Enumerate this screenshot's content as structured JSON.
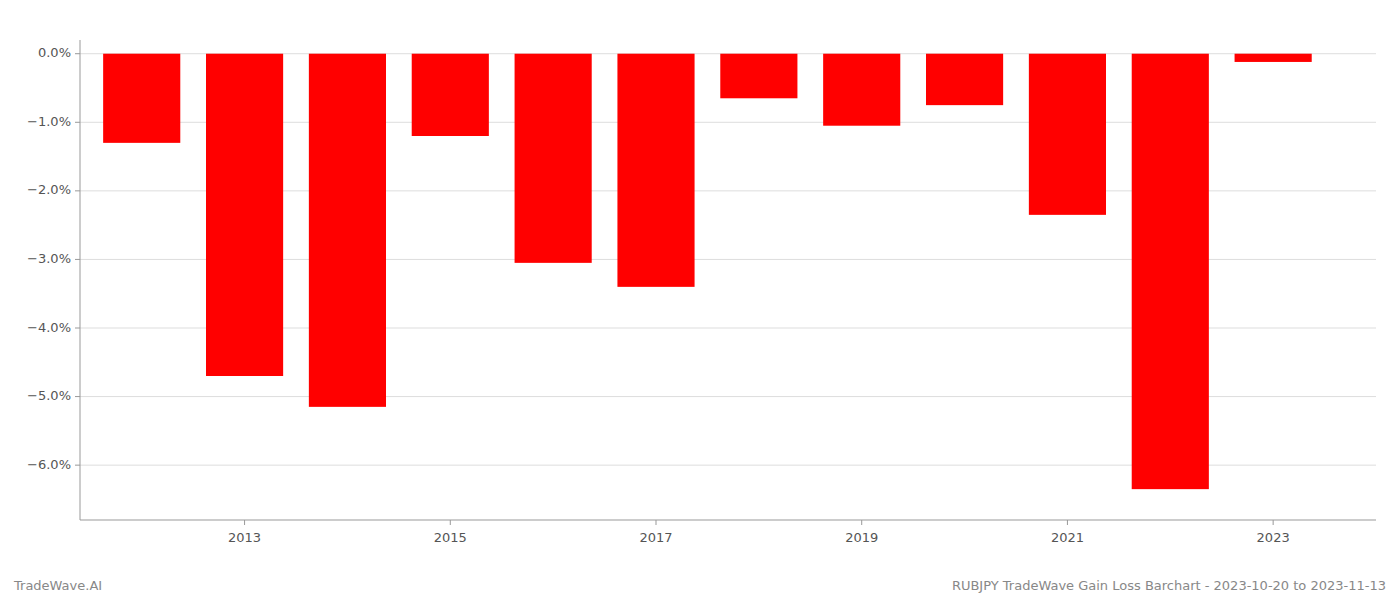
{
  "chart_data": {
    "type": "bar",
    "x": [
      2012,
      2013,
      2014,
      2015,
      2016,
      2017,
      2018,
      2019,
      2020,
      2021,
      2022,
      2023
    ],
    "values": [
      -1.3,
      -4.7,
      -5.15,
      -1.2,
      -3.05,
      -3.4,
      -0.65,
      -1.05,
      -0.75,
      -2.35,
      -6.35,
      -0.12
    ],
    "color": "#ff0000",
    "xlim": [
      2011.4,
      2024.0
    ],
    "xticks": [
      2013,
      2015,
      2017,
      2019,
      2021,
      2023
    ],
    "ylim": [
      -6.8,
      0.2
    ],
    "yticks": [
      {
        "value": 0.0,
        "label": "0.0%"
      },
      {
        "value": -1.0,
        "label": "−1.0%"
      },
      {
        "value": -2.0,
        "label": "−2.0%"
      },
      {
        "value": -3.0,
        "label": "−3.0%"
      },
      {
        "value": -4.0,
        "label": "−4.0%"
      },
      {
        "value": -5.0,
        "label": "−5.0%"
      },
      {
        "value": -6.0,
        "label": "−6.0%"
      }
    ],
    "grid": true,
    "annotations": [
      "TradeWave.AI",
      "RUBJPY TradeWave Gain Loss Barchart - 2023-10-20 to 2023-11-13"
    ]
  }
}
